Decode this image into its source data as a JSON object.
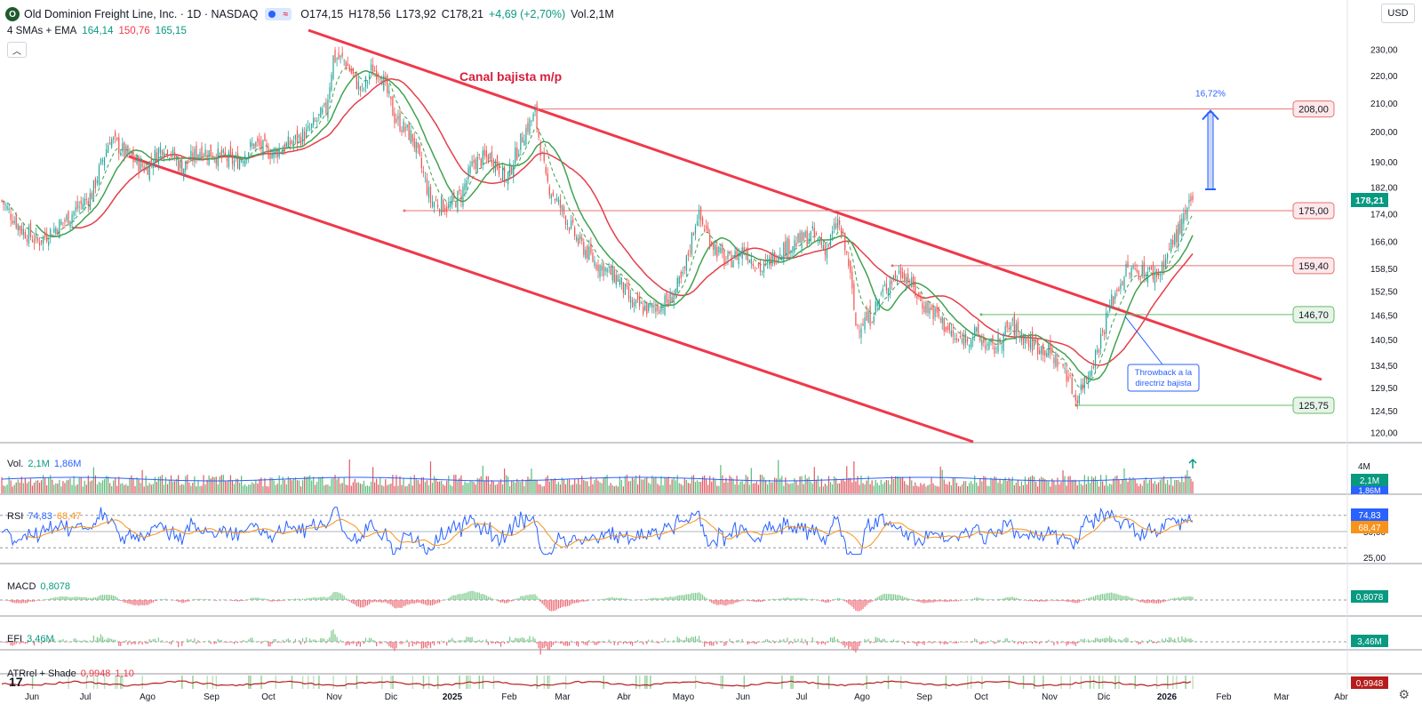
{
  "header": {
    "logo_text": "O",
    "title": "Old Dominion Freight Line, Inc. · 1D · NASDAQ",
    "open": "O174,15",
    "high": "H178,56",
    "low": "L173,92",
    "close": "C178,21",
    "change": "+4,69 (+2,70%)",
    "volume": "Vol.2,1M",
    "currency": "USD",
    "collapse_icon": "chevron-up-icon"
  },
  "ma_legend": {
    "name": "4 SMAs + EMA",
    "v1": "164,14",
    "v2": "150,76",
    "v3": "165,15"
  },
  "colors": {
    "up": "#26a69a",
    "down": "#ef5350",
    "channel": "#f0384a",
    "green_ma": "#3fa34d",
    "red_ma": "#e43f4a",
    "blue": "#2962ff",
    "orange": "#f7931a"
  },
  "chart_data": {
    "type": "candlestick",
    "x_labels": [
      "Jun",
      "Jul",
      "Ago",
      "Sep",
      "Oct",
      "Nov",
      "Dic",
      "2025",
      "Feb",
      "Mar",
      "Abr",
      "Mayo",
      "Jun",
      "Jul",
      "Ago",
      "Sep",
      "Oct",
      "Nov",
      "Dic",
      "2026",
      "Feb",
      "Mar",
      "Abr"
    ],
    "y_ticks": [
      "230,00",
      "220,00",
      "210,00",
      "200,00",
      "190,00",
      "182,00",
      "174,00",
      "166,00",
      "158,50",
      "152,50",
      "146,50",
      "140,50",
      "134,50",
      "129,50",
      "124,50",
      "120,00"
    ],
    "y_tick_values": [
      230,
      220,
      210,
      200,
      190,
      182,
      174,
      166,
      158.5,
      152.5,
      146.5,
      140.5,
      134.5,
      129.5,
      124.5,
      120
    ],
    "scale": "log",
    "close_anchors": [
      [
        0,
        178
      ],
      [
        10,
        170
      ],
      [
        20,
        166
      ],
      [
        35,
        172
      ],
      [
        50,
        180
      ],
      [
        60,
        198
      ],
      [
        70,
        192
      ],
      [
        80,
        188
      ],
      [
        90,
        196
      ],
      [
        100,
        188
      ],
      [
        110,
        194
      ],
      [
        120,
        192
      ],
      [
        130,
        190
      ],
      [
        140,
        196
      ],
      [
        150,
        193
      ],
      [
        160,
        196
      ],
      [
        170,
        200
      ],
      [
        180,
        208
      ],
      [
        184,
        227
      ],
      [
        190,
        226
      ],
      [
        200,
        214
      ],
      [
        205,
        222
      ],
      [
        210,
        222
      ],
      [
        218,
        205
      ],
      [
        228,
        198
      ],
      [
        238,
        178
      ],
      [
        248,
        176
      ],
      [
        255,
        180
      ],
      [
        262,
        190
      ],
      [
        272,
        192
      ],
      [
        280,
        184
      ],
      [
        290,
        200
      ],
      [
        296,
        206
      ],
      [
        302,
        184
      ],
      [
        310,
        176
      ],
      [
        320,
        166
      ],
      [
        330,
        160
      ],
      [
        342,
        156
      ],
      [
        350,
        149
      ],
      [
        360,
        148
      ],
      [
        370,
        150
      ],
      [
        378,
        156
      ],
      [
        386,
        174
      ],
      [
        394,
        166
      ],
      [
        402,
        160
      ],
      [
        412,
        164
      ],
      [
        422,
        158
      ],
      [
        432,
        164
      ],
      [
        442,
        166
      ],
      [
        450,
        168
      ],
      [
        458,
        164
      ],
      [
        464,
        172
      ],
      [
        470,
        160
      ],
      [
        474,
        144
      ],
      [
        482,
        146
      ],
      [
        492,
        155
      ],
      [
        500,
        158
      ],
      [
        510,
        150
      ],
      [
        520,
        146
      ],
      [
        530,
        140
      ],
      [
        540,
        142
      ],
      [
        550,
        138
      ],
      [
        560,
        144
      ],
      [
        570,
        140
      ],
      [
        580,
        138
      ],
      [
        590,
        134
      ],
      [
        596,
        127
      ],
      [
        602,
        132
      ],
      [
        608,
        138
      ],
      [
        616,
        150
      ],
      [
        624,
        158
      ],
      [
        632,
        158
      ],
      [
        642,
        157
      ],
      [
        650,
        166
      ],
      [
        656,
        172
      ],
      [
        661,
        178.21
      ]
    ],
    "bars_count": 662,
    "last_close": 178.21,
    "annotations": [
      {
        "type": "text",
        "text": "Canal bajista m/p"
      },
      {
        "type": "hline",
        "price": 208.0,
        "label": "208,00"
      },
      {
        "type": "hline",
        "price": 175.0,
        "label": "175,00"
      },
      {
        "type": "hline",
        "price": 159.4,
        "label": "159,40"
      },
      {
        "type": "hline",
        "price": 146.7,
        "label": "146,70"
      },
      {
        "type": "hline",
        "price": 125.75,
        "label": "125,75"
      },
      {
        "type": "arrow",
        "text": "16,72%",
        "from": 178.21,
        "to": 208.0
      },
      {
        "type": "callout",
        "text1": "Throwback a la",
        "text2": "directriz bajista"
      }
    ],
    "price_badge": "178,21",
    "panes": {
      "volume": {
        "label": "Vol.",
        "v1": "2,1M",
        "v2": "1,86M",
        "axis": "4M"
      },
      "rsi": {
        "label": "RSI",
        "v1": "74,83",
        "v2": "68,47",
        "ticks": [
          "50,00",
          "25,00"
        ]
      },
      "macd": {
        "label": "MACD",
        "v1": "0,8078"
      },
      "efi": {
        "label": "EFI",
        "v1": "3,46M"
      },
      "atr": {
        "label": "ATRrel + Shade",
        "v1": "0,9948",
        "v2": "1,10"
      }
    }
  }
}
